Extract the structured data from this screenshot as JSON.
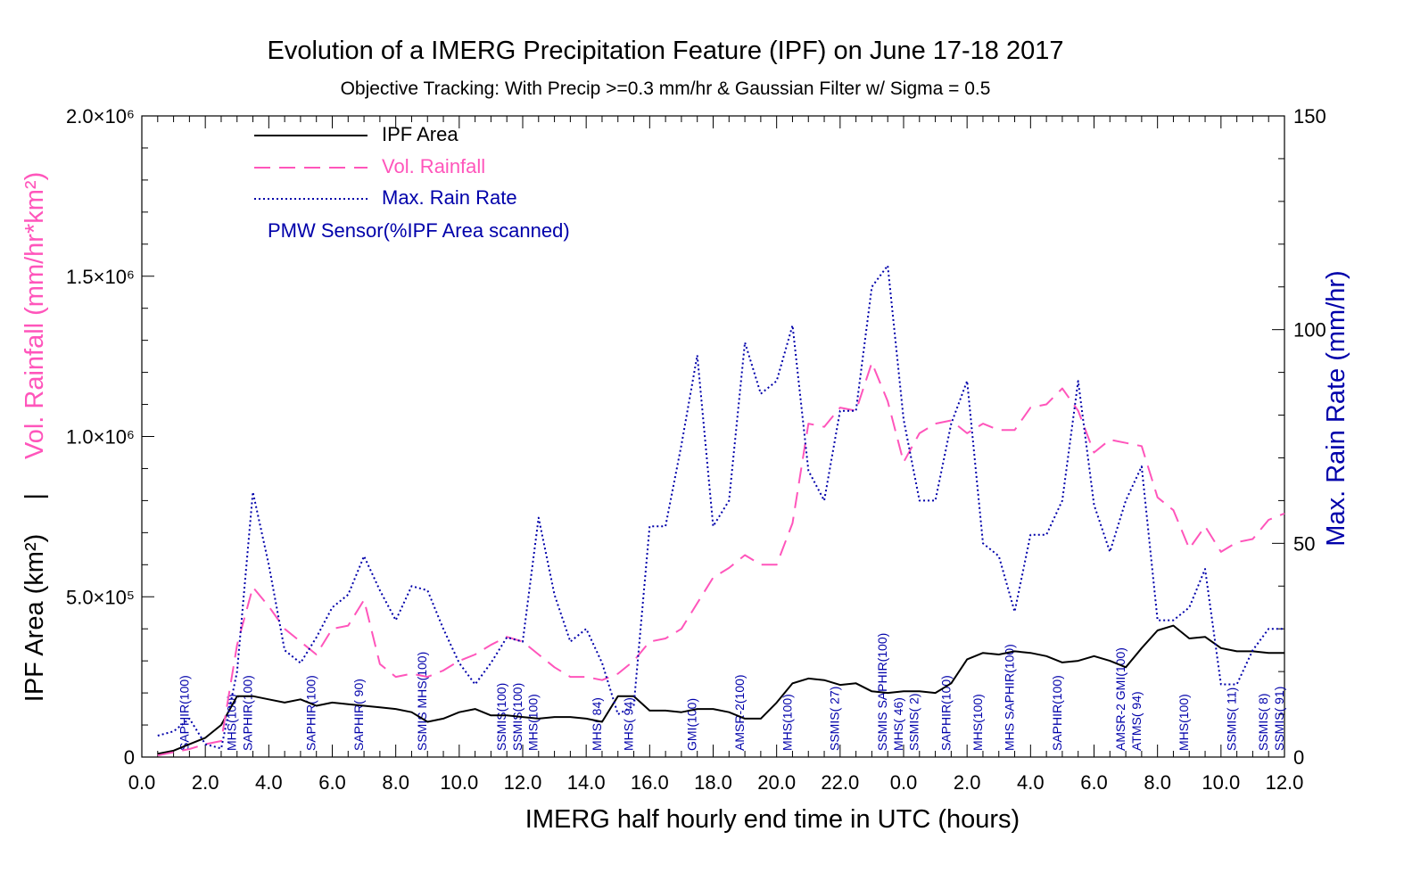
{
  "colors": {
    "area": "#000000",
    "rain": "#ff55bb",
    "rate": "#0000aa",
    "sensor": "#0000aa"
  },
  "chart_data": {
    "type": "line",
    "title": "Evolution of a IMERG Precipitation Feature (IPF) on June 17-18 2017",
    "subtitle": "Objective Tracking: With Precip >=0.3 mm/hr & Gaussian Filter w/ Sigma = 0.5",
    "xlabel": "IMERG half hourly end time in UTC (hours)",
    "ylabel_left_area": "IPF Area (km²)",
    "ylabel_left_sep": "|",
    "ylabel_left_rain": "Vol. Rainfall (mm/hr*km²)",
    "ylabel_right": "Max. Rain Rate (mm/hr)",
    "x_tick_labels": [
      "0.0",
      "2.0",
      "4.0",
      "6.0",
      "8.0",
      "10.0",
      "12.0",
      "14.0",
      "16.0",
      "18.0",
      "20.0",
      "22.0",
      "0.0",
      "2.0",
      "4.0",
      "6.0",
      "8.0",
      "10.0",
      "12.0"
    ],
    "y_left_tick_labels": [
      "0",
      "5.0×10⁵",
      "1.0×10⁶",
      "1.5×10⁶",
      "2.0×10⁶"
    ],
    "y_right_tick_labels": [
      "0",
      "50",
      "100",
      "150"
    ],
    "xlim": [
      0,
      36
    ],
    "ylim_left": [
      0,
      2000000
    ],
    "ylim_right": [
      0,
      150
    ],
    "legend": {
      "placement": "top-left",
      "items": [
        "IPF Area",
        "Vol. Rainfall",
        "Max. Rain Rate"
      ],
      "note": "PMW Sensor(%IPF Area scanned)"
    },
    "series": [
      {
        "name": "IPF Area",
        "axis": "left",
        "x": [
          0.5,
          1,
          1.5,
          2,
          2.5,
          3,
          3.5,
          4,
          4.5,
          5,
          5.5,
          6,
          6.5,
          7,
          7.5,
          8,
          8.5,
          9,
          9.5,
          10,
          10.5,
          11,
          11.5,
          12,
          12.5,
          13,
          13.5,
          14,
          14.5,
          15,
          15.5,
          16,
          16.5,
          17,
          17.5,
          18,
          18.5,
          19,
          19.5,
          20,
          20.5,
          21,
          21.5,
          22,
          22.5,
          23,
          23.5,
          24,
          24.5,
          25,
          25.5,
          26,
          26.5,
          27,
          27.5,
          28,
          28.5,
          29,
          29.5,
          30,
          30.5,
          31,
          31.5,
          32,
          32.5,
          33,
          33.5,
          34,
          34.5,
          35,
          35.5,
          36
        ],
        "values": [
          10000,
          20000,
          40000,
          60000,
          100000,
          190000,
          190000,
          180000,
          170000,
          180000,
          160000,
          170000,
          165000,
          160000,
          155000,
          150000,
          140000,
          110000,
          120000,
          140000,
          150000,
          130000,
          130000,
          125000,
          120000,
          125000,
          125000,
          120000,
          110000,
          190000,
          190000,
          145000,
          145000,
          140000,
          150000,
          150000,
          140000,
          120000,
          120000,
          170000,
          230000,
          245000,
          240000,
          225000,
          230000,
          205000,
          200000,
          205000,
          205000,
          200000,
          230000,
          305000,
          325000,
          320000,
          330000,
          325000,
          315000,
          295000,
          300000,
          315000,
          300000,
          280000,
          340000,
          395000,
          410000,
          370000,
          375000,
          340000,
          330000,
          330000,
          325000,
          325000
        ]
      },
      {
        "name": "Vol. Rainfall",
        "axis": "left",
        "x": [
          0.5,
          1,
          1.5,
          2,
          2.5,
          3,
          3.5,
          4,
          4.5,
          5,
          5.5,
          6,
          6.5,
          7,
          7.5,
          8,
          8.5,
          9,
          9.5,
          10,
          10.5,
          11,
          11.5,
          12,
          12.5,
          13,
          13.5,
          14,
          14.5,
          15,
          15.5,
          16,
          16.5,
          17,
          17.5,
          18,
          18.5,
          19,
          19.5,
          20,
          20.5,
          21,
          21.5,
          22,
          22.5,
          23,
          23.5,
          24,
          24.5,
          25,
          25.5,
          26,
          26.5,
          27,
          27.5,
          28,
          28.5,
          29,
          29.5,
          30,
          30.5,
          31,
          31.5,
          32,
          32.5,
          33,
          33.5,
          34,
          34.5,
          35,
          35.5,
          36
        ],
        "values": [
          5000,
          15000,
          25000,
          40000,
          50000,
          350000,
          530000,
          470000,
          400000,
          360000,
          320000,
          400000,
          410000,
          490000,
          290000,
          250000,
          260000,
          250000,
          270000,
          300000,
          320000,
          350000,
          375000,
          360000,
          320000,
          280000,
          250000,
          250000,
          240000,
          260000,
          300000,
          360000,
          370000,
          400000,
          480000,
          560000,
          590000,
          630000,
          600000,
          600000,
          730000,
          1040000,
          1030000,
          1090000,
          1080000,
          1230000,
          1110000,
          920000,
          1010000,
          1040000,
          1050000,
          1010000,
          1040000,
          1020000,
          1020000,
          1090000,
          1100000,
          1150000,
          1080000,
          950000,
          990000,
          980000,
          970000,
          810000,
          770000,
          650000,
          720000,
          640000,
          670000,
          680000,
          740000,
          760000
        ]
      },
      {
        "name": "Max. Rain Rate",
        "axis": "right",
        "x": [
          0.5,
          1,
          1.5,
          2,
          2.5,
          3,
          3.5,
          4,
          4.5,
          5,
          5.5,
          6,
          6.5,
          7,
          7.5,
          8,
          8.5,
          9,
          9.5,
          10,
          10.5,
          11,
          11.5,
          12,
          12.5,
          13,
          13.5,
          14,
          14.5,
          15,
          15.5,
          16,
          16.5,
          17,
          17.5,
          18,
          18.5,
          19,
          19.5,
          20,
          20.5,
          21,
          21.5,
          22,
          22.5,
          23,
          23.5,
          24,
          24.5,
          25,
          25.5,
          26,
          26.5,
          27,
          27.5,
          28,
          28.5,
          29,
          29.5,
          30,
          30.5,
          31,
          31.5,
          32,
          32.5,
          33,
          33.5,
          34,
          34.5,
          35,
          35.5,
          36
        ],
        "values": [
          5,
          6,
          9,
          3,
          2,
          20,
          62,
          45,
          25,
          22,
          28,
          35,
          38,
          47,
          39,
          32,
          40,
          39,
          30,
          22,
          17,
          22,
          28,
          27,
          56,
          38,
          27,
          30,
          22,
          10,
          12,
          54,
          54,
          73,
          94,
          54,
          60,
          97,
          85,
          88,
          101,
          67,
          60,
          81,
          81,
          110,
          115,
          79,
          60,
          60,
          78,
          88,
          50,
          47,
          34,
          52,
          52,
          60,
          88,
          59,
          48,
          60,
          68,
          32,
          32,
          35,
          44,
          17,
          17,
          25,
          30,
          30
        ]
      }
    ],
    "sensor_annotations": [
      {
        "x": 1.3,
        "label": "SAPHIR(100)"
      },
      {
        "x": 2.8,
        "label": "MHS(100)"
      },
      {
        "x": 3.3,
        "label": "SAPHIR(100)"
      },
      {
        "x": 5.3,
        "label": "SAPHIR(100)"
      },
      {
        "x": 6.8,
        "label": "SAPHIR( 90)"
      },
      {
        "x": 8.8,
        "label": "SSMIS MHS(100)"
      },
      {
        "x": 11.3,
        "label": "SSMIS(100)"
      },
      {
        "x": 11.8,
        "label": "SSMIS(100)"
      },
      {
        "x": 12.3,
        "label": "MHS(100)"
      },
      {
        "x": 14.3,
        "label": "MHS( 84)"
      },
      {
        "x": 15.3,
        "label": "MHS( 94)"
      },
      {
        "x": 17.3,
        "label": "GMI(100)"
      },
      {
        "x": 18.8,
        "label": "AMSR-2(100)"
      },
      {
        "x": 20.3,
        "label": "MHS(100)"
      },
      {
        "x": 21.8,
        "label": "SSMIS( 27)"
      },
      {
        "x": 23.3,
        "label": "SSMIS SAPHIR(100)"
      },
      {
        "x": 23.8,
        "label": "MHS( 46)"
      },
      {
        "x": 24.3,
        "label": "SSMIS( 2)"
      },
      {
        "x": 25.3,
        "label": "SAPHIR(100)"
      },
      {
        "x": 26.3,
        "label": "MHS(100)"
      },
      {
        "x": 27.3,
        "label": "MHS SAPHIR(100)"
      },
      {
        "x": 28.8,
        "label": "SAPHIR(100)"
      },
      {
        "x": 30.8,
        "label": "AMSR-2 GMI(100)"
      },
      {
        "x": 31.3,
        "label": "ATMS( 94)"
      },
      {
        "x": 32.8,
        "label": "MHS(100)"
      },
      {
        "x": 34.3,
        "label": "SSMIS( 11)"
      },
      {
        "x": 35.3,
        "label": "SSMIS( 8)"
      },
      {
        "x": 35.8,
        "label": "SSMIS( 91)"
      }
    ]
  }
}
